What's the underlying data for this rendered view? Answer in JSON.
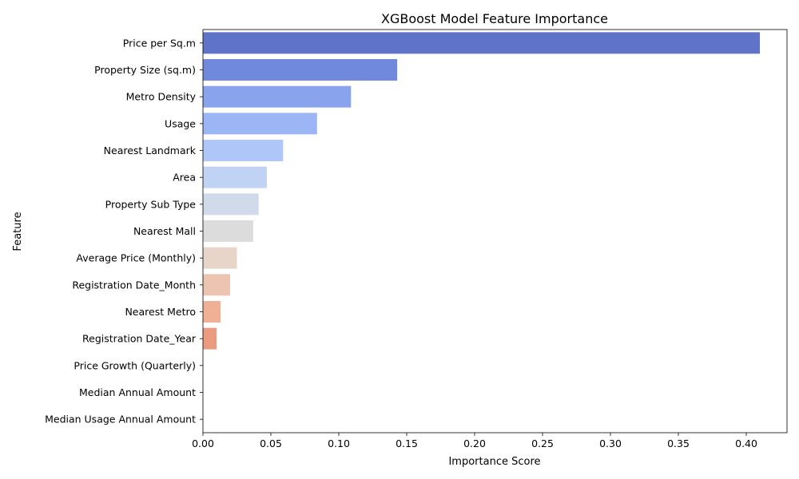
{
  "chart_data": {
    "type": "bar",
    "orientation": "horizontal",
    "title": "XGBoost Model Feature Importance",
    "xlabel": "Importance Score",
    "ylabel": "Feature",
    "xlim": [
      0,
      0.43
    ],
    "xticks": [
      0.0,
      0.05,
      0.1,
      0.15,
      0.2,
      0.25,
      0.3,
      0.35,
      0.4
    ],
    "xtick_labels": [
      "0.00",
      "0.05",
      "0.10",
      "0.15",
      "0.20",
      "0.25",
      "0.30",
      "0.35",
      "0.40"
    ],
    "grid": false,
    "palette": "coolwarm",
    "categories": [
      "Price per Sq.m",
      "Property Size (sq.m)",
      "Metro Density",
      "Usage",
      "Nearest Landmark",
      "Area",
      "Property Sub Type",
      "Nearest Mall",
      "Average Price (Monthly)",
      "Registration Date_Month",
      "Nearest Metro",
      "Registration Date_Year",
      "Price Growth (Quarterly)",
      "Median Annual Amount",
      "Median Usage Annual Amount"
    ],
    "values": [
      0.41,
      0.143,
      0.109,
      0.084,
      0.059,
      0.047,
      0.041,
      0.037,
      0.025,
      0.02,
      0.013,
      0.01,
      0.0,
      0.0,
      0.0
    ],
    "colors": [
      "#5f73c8",
      "#7189dd",
      "#89a3ed",
      "#9cb6f5",
      "#afc7f8",
      "#c1d3f4",
      "#d0daea",
      "#dcdcdc",
      "#e8d5ca",
      "#edc4b2",
      "#efb096",
      "#eb9c80",
      "#e3876c",
      "#d6705a",
      "#c5574a"
    ]
  }
}
